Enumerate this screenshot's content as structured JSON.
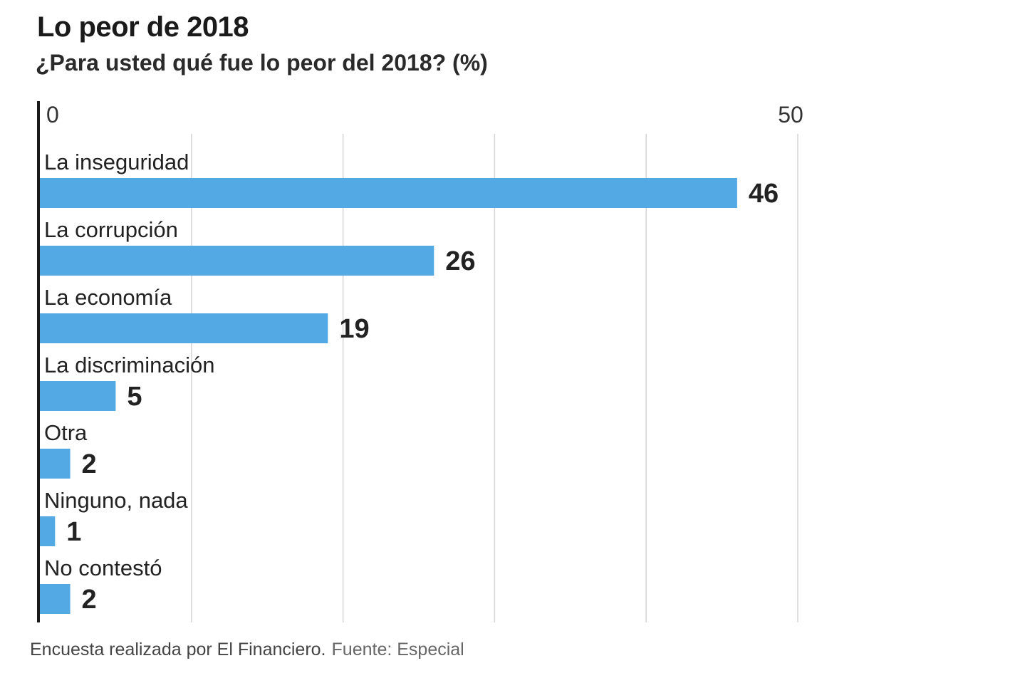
{
  "header": {
    "title": "Lo peor de 2018",
    "subtitle": "¿Para usted qué fue lo peor del 2018? (%)"
  },
  "footer": {
    "note": "Encuesta realizada por El Financiero.",
    "source": "Fuente: Especial"
  },
  "colors": {
    "bar": "#52a9e4",
    "grid": "#d6d6d6",
    "axis": "#1a1a1a",
    "text": "#222222"
  },
  "chart_data": {
    "type": "bar",
    "orientation": "horizontal",
    "title": "Lo peor de 2018",
    "subtitle": "¿Para usted qué fue lo peor del 2018? (%)",
    "categories": [
      "La inseguridad",
      "La corrupción",
      "La economía",
      "La discriminación",
      "Otra",
      "Ninguno, nada",
      "No contestó"
    ],
    "values": [
      46,
      26,
      19,
      5,
      2,
      1,
      2
    ],
    "xlim": [
      0,
      50
    ],
    "x_ticks": [
      0,
      10,
      20,
      30,
      40,
      50
    ],
    "x_tick_labels": [
      "0",
      "50"
    ],
    "grid": true,
    "data_labels": true,
    "legend": "none"
  }
}
